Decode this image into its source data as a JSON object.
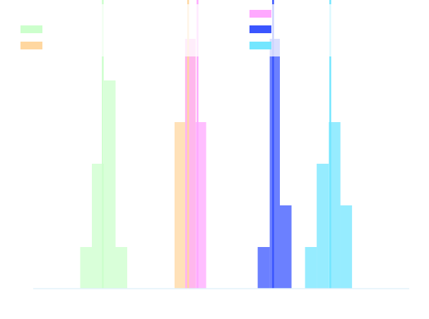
{
  "chart_data": {
    "type": "histogram",
    "title": "",
    "xlabel": "",
    "ylabel": "",
    "xlim": [
      0,
      100
    ],
    "ylim": [
      0,
      6
    ],
    "grid": false,
    "legend": {
      "placement": "top"
    },
    "series": [
      {
        "color": "#ccffcc",
        "mean": 18.5,
        "bins": [
          {
            "x0": 12.5,
            "x1": 15.6,
            "count": 1
          },
          {
            "x0": 15.6,
            "x1": 18.8,
            "count": 3
          },
          {
            "x0": 18.8,
            "x1": 21.9,
            "count": 5
          },
          {
            "x0": 21.9,
            "x1": 25.0,
            "count": 1
          }
        ]
      },
      {
        "color": "#ffd7a0",
        "mean": 41.2,
        "bins": [
          {
            "x0": 37.6,
            "x1": 40.4,
            "count": 4
          },
          {
            "x0": 40.4,
            "x1": 43.2,
            "count": 6
          }
        ]
      },
      {
        "color": "#ffa8ff",
        "mean": 43.7,
        "bins": [
          {
            "x0": 40.4,
            "x1": 43.2,
            "count": 6
          },
          {
            "x0": 43.2,
            "x1": 46.0,
            "count": 4
          }
        ]
      },
      {
        "color": "#3a55ff",
        "mean": 63.8,
        "bins": [
          {
            "x0": 59.7,
            "x1": 62.9,
            "count": 1
          },
          {
            "x0": 62.9,
            "x1": 65.6,
            "count": 6
          },
          {
            "x0": 65.6,
            "x1": 68.7,
            "count": 2
          }
        ]
      },
      {
        "color": "#73e6ff",
        "mean": 79.0,
        "bins": [
          {
            "x0": 72.3,
            "x1": 75.4,
            "count": 1
          },
          {
            "x0": 75.4,
            "x1": 78.6,
            "count": 3
          },
          {
            "x0": 78.6,
            "x1": 81.7,
            "count": 4
          },
          {
            "x0": 81.7,
            "x1": 84.8,
            "count": 2
          }
        ]
      }
    ],
    "legend_swatches": [
      {
        "color": "#ccffcc"
      },
      {
        "color": "#ffd7a0"
      },
      {
        "color": "#ffa8ff"
      },
      {
        "color": "#3a55ff"
      },
      {
        "color": "#73e6ff"
      }
    ]
  }
}
